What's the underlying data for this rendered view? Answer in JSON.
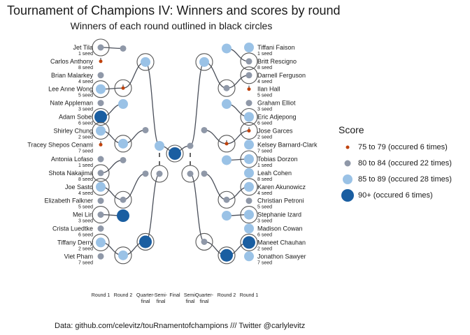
{
  "title": "Tournament of Champions IV: Winners and scores by round",
  "subtitle": "Winners of each round outlined in black circles",
  "caption": "Data: github.com/celevitz/touRnamentofchampions /// Twitter @carlylevitz",
  "chart_data": {
    "type": "scatter",
    "round_labels": [
      "Round 1",
      "Round 2",
      "Quarter-final",
      "Semi-final",
      "Final",
      "Semi-final",
      "Quarter-final",
      "Round 2",
      "Round 1"
    ],
    "legend": {
      "title": "Score",
      "entries": [
        {
          "label": "75 to 79 (occured 6 times)",
          "color": "#c0430e",
          "size": "small"
        },
        {
          "label": "80 to 84 (occured 22 times)",
          "color": "#8f98a8",
          "size": "medium"
        },
        {
          "label": "85 to 89 (occured 28 times)",
          "color": "#9ac2e6",
          "size": "large"
        },
        {
          "label": "90+ (occured 6 times)",
          "color": "#1a5ea1",
          "size": "xlarge"
        }
      ]
    },
    "bracket_sides": {
      "left": [
        [
          {
            "name": "Jet Tila",
            "seed": "1 seed"
          },
          {
            "name": "Carlos Anthony",
            "seed": "8 seed"
          },
          {
            "name": "Brian Malarkey",
            "seed": "4 seed"
          },
          {
            "name": "Lee Anne Wong",
            "seed": "5 seed"
          },
          {
            "name": "Nate Appleman",
            "seed": "3 seed"
          },
          {
            "name": "Adam Sobel",
            "seed": "6 seed"
          },
          {
            "name": "Shirley Chung",
            "seed": "2 seed"
          },
          {
            "name": "Tracey Shepos Cenami",
            "seed": "7 seed"
          }
        ],
        [
          {
            "name": "Antonia Lofaso",
            "seed": "1 seed"
          },
          {
            "name": "Shota Nakajima",
            "seed": "8 seed"
          },
          {
            "name": "Joe Sasto",
            "seed": "4 seed"
          },
          {
            "name": "Elizabeth Falkner",
            "seed": "5 seed"
          },
          {
            "name": "Mei Lin",
            "seed": "3 seed"
          },
          {
            "name": "Crista Luedtke",
            "seed": "6 seed"
          },
          {
            "name": "Tiffany Derry",
            "seed": "2 seed"
          },
          {
            "name": "Viet Pham",
            "seed": "7 seed"
          }
        ]
      ],
      "right": [
        [
          {
            "name": "Tiffani Faison",
            "seed": "1 seed"
          },
          {
            "name": "Britt Rescigno",
            "seed": "8 seed"
          },
          {
            "name": "Darnell Ferguson",
            "seed": "4 seed"
          },
          {
            "name": "Ilan Hall",
            "seed": "5 seed"
          },
          {
            "name": "Graham Elliot",
            "seed": "3 seed"
          },
          {
            "name": "Eric Adjepong",
            "seed": "6 seed"
          },
          {
            "name": "Jose Garces",
            "seed": "2 seed"
          },
          {
            "name": "Kelsey Barnard-Clark",
            "seed": "7 seed"
          }
        ],
        [
          {
            "name": "Tobias Dorzon",
            "seed": "1 seed"
          },
          {
            "name": "Leah Cohen",
            "seed": "8 seed"
          },
          {
            "name": "Karen Akunowicz",
            "seed": "4 seed"
          },
          {
            "name": "Christian Petroni",
            "seed": "5 seed"
          },
          {
            "name": "Stephanie Izard",
            "seed": "3 seed"
          },
          {
            "name": "Madison Cowan",
            "seed": "6 seed"
          },
          {
            "name": "Maneet Chauhan",
            "seed": "2 seed"
          },
          {
            "name": "Jonathon Sawyer",
            "seed": "7 seed"
          }
        ]
      ]
    },
    "round1": {
      "left": [
        [
          1,
          0,
          1,
          2,
          1,
          3,
          2,
          0
        ],
        [
          1,
          1,
          2,
          1,
          1,
          1,
          2,
          1
        ]
      ],
      "right": [
        [
          2,
          1,
          1,
          0,
          1,
          2,
          0,
          2
        ],
        [
          2,
          2,
          2,
          1,
          2,
          2,
          3,
          2
        ]
      ],
      "winner": [
        [
          0,
          1,
          0,
          1,
          0,
          1,
          1,
          0
        ],
        [
          0,
          1,
          1,
          0,
          1,
          0,
          1,
          0
        ]
      ]
    },
    "round2": {
      "left": [
        [
          1,
          0,
          2,
          2
        ],
        [
          1,
          1,
          3,
          2
        ]
      ],
      "right": [
        [
          2,
          1,
          2,
          0
        ],
        [
          2,
          1,
          2,
          3
        ]
      ],
      "winner": [
        [
          0,
          1,
          0,
          1
        ],
        [
          0,
          1,
          0,
          1
        ]
      ]
    },
    "quarterfinals": {
      "left": [
        [
          2,
          1
        ],
        [
          1,
          3
        ]
      ],
      "right": [
        [
          2,
          1
        ],
        [
          1,
          1
        ]
      ],
      "winner": [
        [
          0,
          1
        ],
        [
          0,
          1
        ]
      ]
    },
    "semifinals": {
      "left": [
        2,
        1
      ],
      "right": [
        1,
        1
      ],
      "winner": [
        1,
        1
      ]
    },
    "final": {
      "left": 2,
      "right": 3,
      "winner": 1
    }
  }
}
